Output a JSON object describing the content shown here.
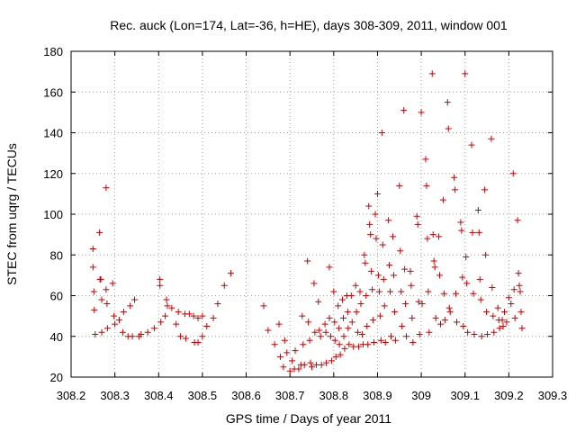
{
  "chart_data": {
    "type": "scatter",
    "title": "Rec. auck (Lon=174, Lat=-36, h=HE), days 308-309, 2011, window 001",
    "xlabel": "GPS time / Days of year 2011",
    "ylabel": "STEC from uqrg / TECUs",
    "xlim": [
      308.2,
      309.3
    ],
    "ylim": [
      20,
      180
    ],
    "xticks": [
      308.2,
      308.3,
      308.4,
      308.5,
      308.6,
      308.7,
      308.8,
      308.9,
      309.0,
      309.1,
      309.2,
      309.3
    ],
    "xtick_labels": [
      "308.2",
      "308.3",
      "308.4",
      "308.5",
      "308.6",
      "308.7",
      "308.8",
      "308.9",
      "309",
      "309.1",
      "309.2",
      "309.3"
    ],
    "yticks": [
      20,
      40,
      60,
      80,
      100,
      120,
      140,
      160,
      180
    ],
    "ytick_labels": [
      "20",
      "40",
      "60",
      "80",
      "100",
      "120",
      "140",
      "160",
      "180"
    ],
    "grid": true,
    "marker": "+",
    "color": "#cc0000",
    "points": [
      [
        308.25,
        83
      ],
      [
        308.25,
        74
      ],
      [
        308.252,
        62
      ],
      [
        308.253,
        53
      ],
      [
        308.255,
        41
      ],
      [
        308.265,
        91
      ],
      [
        308.266,
        68
      ],
      [
        308.268,
        68
      ],
      [
        308.27,
        58
      ],
      [
        308.27,
        42
      ],
      [
        308.28,
        113
      ],
      [
        308.28,
        63
      ],
      [
        308.282,
        56
      ],
      [
        308.283,
        44
      ],
      [
        308.295,
        66
      ],
      [
        308.298,
        50
      ],
      [
        308.3,
        46
      ],
      [
        308.31,
        48
      ],
      [
        308.318,
        42
      ],
      [
        308.32,
        52
      ],
      [
        308.33,
        40
      ],
      [
        308.335,
        55
      ],
      [
        308.34,
        40
      ],
      [
        308.345,
        58
      ],
      [
        308.355,
        40
      ],
      [
        308.36,
        41
      ],
      [
        308.375,
        42
      ],
      [
        308.39,
        44
      ],
      [
        308.403,
        68
      ],
      [
        308.403,
        65
      ],
      [
        308.405,
        47
      ],
      [
        308.415,
        50
      ],
      [
        308.418,
        58
      ],
      [
        308.42,
        55
      ],
      [
        308.43,
        54
      ],
      [
        308.44,
        46
      ],
      [
        308.445,
        52
      ],
      [
        308.45,
        40
      ],
      [
        308.46,
        51
      ],
      [
        308.462,
        39
      ],
      [
        308.47,
        51
      ],
      [
        308.48,
        50
      ],
      [
        308.482,
        37
      ],
      [
        308.49,
        49
      ],
      [
        308.49,
        37
      ],
      [
        308.5,
        50
      ],
      [
        308.5,
        40
      ],
      [
        308.51,
        45
      ],
      [
        308.525,
        49
      ],
      [
        308.535,
        56
      ],
      [
        308.55,
        65
      ],
      [
        308.565,
        71
      ],
      [
        308.64,
        55
      ],
      [
        308.65,
        43
      ],
      [
        308.665,
        36
      ],
      [
        308.675,
        46
      ],
      [
        308.678,
        30
      ],
      [
        308.685,
        25
      ],
      [
        308.688,
        38
      ],
      [
        308.693,
        32
      ],
      [
        308.7,
        23
      ],
      [
        308.705,
        28
      ],
      [
        308.71,
        24
      ],
      [
        308.712,
        33
      ],
      [
        308.72,
        24
      ],
      [
        308.725,
        26
      ],
      [
        308.728,
        50
      ],
      [
        308.73,
        36
      ],
      [
        308.733,
        26
      ],
      [
        308.74,
        77
      ],
      [
        308.742,
        47
      ],
      [
        308.745,
        38
      ],
      [
        308.747,
        27
      ],
      [
        308.75,
        25
      ],
      [
        308.755,
        66
      ],
      [
        308.757,
        42
      ],
      [
        308.76,
        26
      ],
      [
        308.765,
        57
      ],
      [
        308.767,
        43
      ],
      [
        308.77,
        40
      ],
      [
        308.772,
        26
      ],
      [
        308.78,
        46
      ],
      [
        308.782,
        42
      ],
      [
        308.783,
        27
      ],
      [
        308.79,
        74
      ],
      [
        308.79,
        49
      ],
      [
        308.793,
        40
      ],
      [
        308.795,
        28
      ],
      [
        308.8,
        62
      ],
      [
        308.802,
        47
      ],
      [
        308.803,
        38
      ],
      [
        308.805,
        30
      ],
      [
        308.81,
        55
      ],
      [
        308.812,
        44
      ],
      [
        308.813,
        36
      ],
      [
        308.815,
        31
      ],
      [
        308.82,
        58
      ],
      [
        308.822,
        49
      ],
      [
        308.823,
        40
      ],
      [
        308.825,
        34
      ],
      [
        308.83,
        60
      ],
      [
        308.832,
        52
      ],
      [
        308.833,
        44
      ],
      [
        308.835,
        36
      ],
      [
        308.84,
        60
      ],
      [
        308.842,
        47
      ],
      [
        308.845,
        35
      ],
      [
        308.85,
        65
      ],
      [
        308.852,
        52
      ],
      [
        308.855,
        42
      ],
      [
        308.857,
        35
      ],
      [
        308.86,
        62
      ],
      [
        308.862,
        56
      ],
      [
        308.865,
        41
      ],
      [
        308.867,
        36
      ],
      [
        308.87,
        80
      ],
      [
        308.872,
        76
      ],
      [
        308.874,
        60
      ],
      [
        308.876,
        45
      ],
      [
        308.878,
        36
      ],
      [
        308.88,
        104
      ],
      [
        308.882,
        95
      ],
      [
        308.884,
        90
      ],
      [
        308.886,
        72
      ],
      [
        308.888,
        63
      ],
      [
        308.89,
        48
      ],
      [
        308.892,
        37
      ],
      [
        308.895,
        100
      ],
      [
        308.897,
        88
      ],
      [
        308.9,
        110
      ],
      [
        308.902,
        70
      ],
      [
        308.904,
        62
      ],
      [
        308.906,
        50
      ],
      [
        308.908,
        38
      ],
      [
        308.91,
        140
      ],
      [
        308.912,
        85
      ],
      [
        308.914,
        68
      ],
      [
        308.916,
        55
      ],
      [
        308.918,
        37
      ],
      [
        308.925,
        97
      ],
      [
        308.927,
        75
      ],
      [
        308.929,
        62
      ],
      [
        308.931,
        40
      ],
      [
        308.935,
        89
      ],
      [
        308.937,
        70
      ],
      [
        308.939,
        52
      ],
      [
        308.941,
        38
      ],
      [
        308.95,
        114
      ],
      [
        308.952,
        82
      ],
      [
        308.954,
        62
      ],
      [
        308.956,
        45
      ],
      [
        308.96,
        151
      ],
      [
        308.962,
        73
      ],
      [
        308.964,
        56
      ],
      [
        308.966,
        40
      ],
      [
        308.975,
        72
      ],
      [
        308.977,
        65
      ],
      [
        308.979,
        49
      ],
      [
        308.981,
        37
      ],
      [
        308.99,
        99
      ],
      [
        308.992,
        95
      ],
      [
        308.994,
        57
      ],
      [
        308.996,
        41
      ],
      [
        309.0,
        150
      ],
      [
        309.002,
        56
      ],
      [
        309.01,
        127
      ],
      [
        309.012,
        114
      ],
      [
        309.014,
        88
      ],
      [
        309.016,
        62
      ],
      [
        309.018,
        42
      ],
      [
        309.025,
        169
      ],
      [
        309.027,
        90
      ],
      [
        309.029,
        77
      ],
      [
        309.031,
        74
      ],
      [
        309.033,
        49
      ],
      [
        309.04,
        89
      ],
      [
        309.042,
        70
      ],
      [
        309.044,
        46
      ],
      [
        309.05,
        107
      ],
      [
        309.052,
        61
      ],
      [
        309.054,
        48
      ],
      [
        309.06,
        155
      ],
      [
        309.062,
        142
      ],
      [
        309.064,
        54
      ],
      [
        309.066,
        52
      ],
      [
        309.075,
        118
      ],
      [
        309.077,
        112
      ],
      [
        309.079,
        61
      ],
      [
        309.081,
        47
      ],
      [
        309.09,
        96
      ],
      [
        309.092,
        92
      ],
      [
        309.094,
        69
      ],
      [
        309.096,
        45
      ],
      [
        309.1,
        169
      ],
      [
        309.102,
        79
      ],
      [
        309.104,
        66
      ],
      [
        309.106,
        42
      ],
      [
        309.115,
        134
      ],
      [
        309.117,
        91
      ],
      [
        309.119,
        61
      ],
      [
        309.121,
        41
      ],
      [
        309.13,
        102
      ],
      [
        309.132,
        91
      ],
      [
        309.134,
        68
      ],
      [
        309.136,
        58
      ],
      [
        309.138,
        40
      ],
      [
        309.145,
        112
      ],
      [
        309.147,
        80
      ],
      [
        309.149,
        52
      ],
      [
        309.151,
        41
      ],
      [
        309.16,
        137
      ],
      [
        309.162,
        64
      ],
      [
        309.164,
        50
      ],
      [
        309.166,
        42
      ],
      [
        309.175,
        54
      ],
      [
        309.177,
        48
      ],
      [
        309.179,
        44
      ],
      [
        309.185,
        48
      ],
      [
        309.187,
        45
      ],
      [
        309.19,
        52
      ],
      [
        309.195,
        47
      ],
      [
        309.2,
        59
      ],
      [
        309.205,
        56
      ],
      [
        309.21,
        120
      ],
      [
        309.212,
        63
      ],
      [
        309.214,
        49
      ],
      [
        309.22,
        97
      ],
      [
        309.222,
        71
      ],
      [
        309.224,
        65
      ],
      [
        309.226,
        62
      ],
      [
        309.228,
        52
      ],
      [
        309.23,
        44
      ]
    ]
  }
}
